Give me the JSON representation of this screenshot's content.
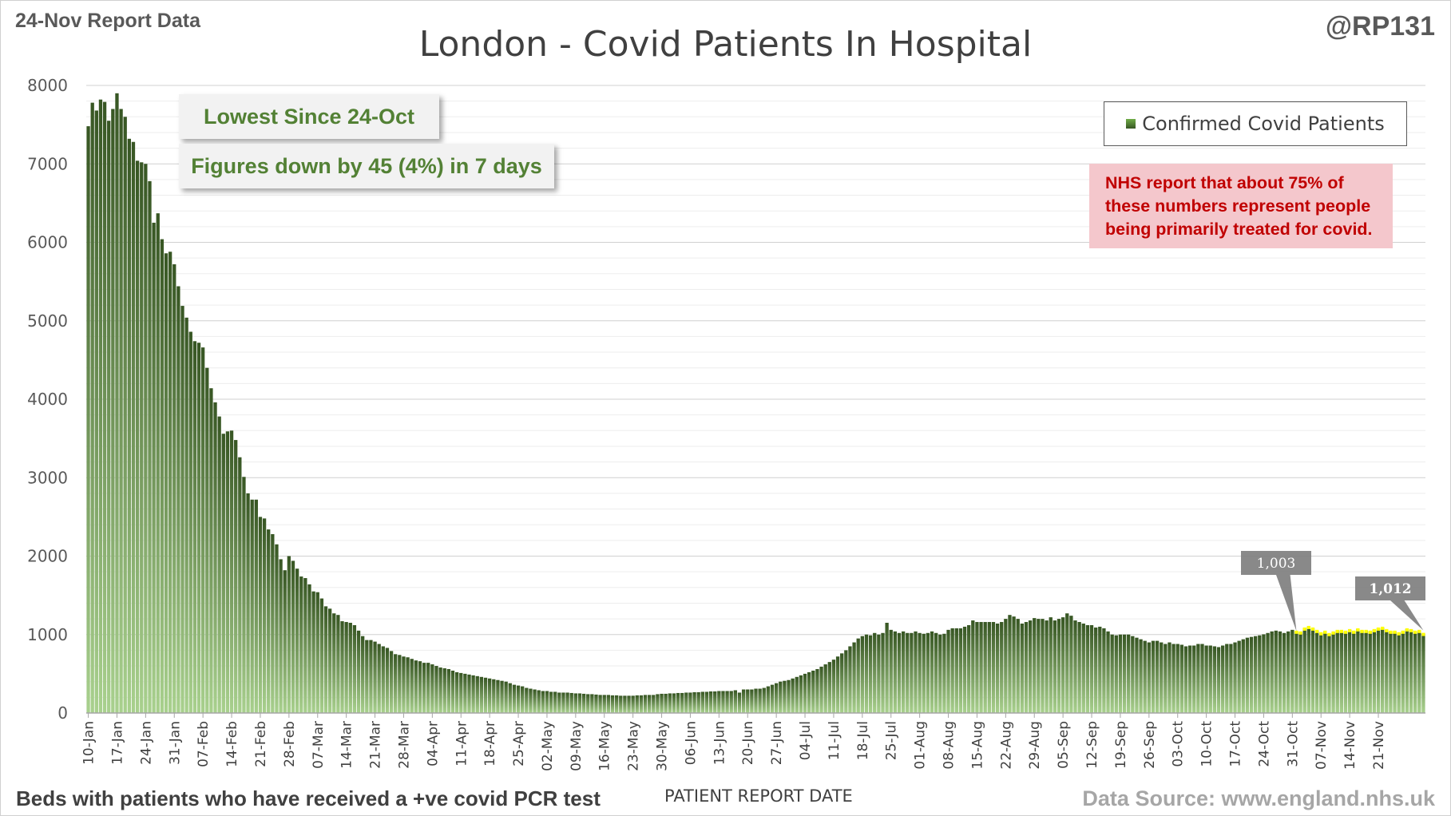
{
  "header": {
    "report_label": "24-Nov Report Data",
    "handle": "@RP131",
    "title": "London - Covid Patients In Hospital"
  },
  "callouts": {
    "lowest": "Lowest Since 24-Oct",
    "change": "Figures down by 45 (4%) in 7 days"
  },
  "legend": {
    "label": "Confirmed Covid Patients"
  },
  "note": {
    "text": "NHS report that about 75% of these numbers represent people being primarily treated for covid."
  },
  "footer": {
    "left": "Beds with patients who have received a +ve covid PCR test",
    "center": "PATIENT REPORT DATE",
    "right": "Data Source: www.england.nhs.uk"
  },
  "colors": {
    "bar_top": "#375623",
    "bar_bottom": "#a9d18e",
    "highlight": "#ffff00",
    "gridline": "#d9d9d9",
    "label_box": "#7f7f7f"
  },
  "chart_data": {
    "type": "bar",
    "title": "London - Covid Patients In Hospital",
    "xlabel": "PATIENT REPORT DATE",
    "ylabel": "",
    "ylim": [
      0,
      8000
    ],
    "yticks": [
      0,
      1000,
      2000,
      3000,
      4000,
      5000,
      6000,
      7000,
      8000
    ],
    "grid": true,
    "legend_position": "top-right",
    "x_tick_labels": [
      "10-Jan",
      "17-Jan",
      "24-Jan",
      "31-Jan",
      "07-Feb",
      "14-Feb",
      "21-Feb",
      "28-Feb",
      "07-Mar",
      "14-Mar",
      "21-Mar",
      "28-Mar",
      "04-Apr",
      "11-Apr",
      "18-Apr",
      "25-Apr",
      "02-May",
      "09-May",
      "16-May",
      "23-May",
      "30-May",
      "06-Jun",
      "13-Jun",
      "20-Jun",
      "27-Jun",
      "04-Jul",
      "11-Jul",
      "18-Jul",
      "25-Jul",
      "01-Aug",
      "08-Aug",
      "15-Aug",
      "22-Aug",
      "29-Aug",
      "05-Sep",
      "12-Sep",
      "19-Sep",
      "26-Sep",
      "03-Oct",
      "10-Oct",
      "17-Oct",
      "24-Oct",
      "31-Oct",
      "07-Nov",
      "14-Nov",
      "21-Nov"
    ],
    "series": [
      {
        "name": "Confirmed Covid Patients",
        "start_date": "10-Jan",
        "values": [
          7480,
          7780,
          7680,
          7820,
          7790,
          7550,
          7700,
          7900,
          7700,
          7600,
          7320,
          7280,
          7040,
          7020,
          7000,
          6780,
          6250,
          6370,
          6040,
          5860,
          5880,
          5720,
          5440,
          5190,
          5040,
          4860,
          4740,
          4720,
          4660,
          4400,
          4140,
          3960,
          3780,
          3560,
          3590,
          3600,
          3480,
          3260,
          3010,
          2800,
          2720,
          2720,
          2500,
          2480,
          2340,
          2280,
          2150,
          1960,
          1820,
          2000,
          1940,
          1840,
          1740,
          1720,
          1640,
          1550,
          1540,
          1460,
          1360,
          1330,
          1270,
          1250,
          1170,
          1160,
          1150,
          1120,
          1050,
          980,
          930,
          930,
          910,
          880,
          850,
          830,
          790,
          750,
          740,
          720,
          710,
          690,
          670,
          660,
          640,
          640,
          620,
          600,
          580,
          570,
          560,
          540,
          520,
          510,
          500,
          490,
          480,
          470,
          460,
          450,
          440,
          430,
          420,
          410,
          400,
          380,
          360,
          350,
          340,
          320,
          310,
          300,
          290,
          280,
          280,
          270,
          270,
          260,
          260,
          260,
          255,
          250,
          250,
          245,
          240,
          240,
          235,
          230,
          230,
          230,
          225,
          225,
          220,
          220,
          220,
          220,
          225,
          225,
          230,
          230,
          230,
          240,
          245,
          245,
          250,
          250,
          255,
          255,
          260,
          260,
          265,
          265,
          270,
          270,
          275,
          275,
          280,
          280,
          280,
          280,
          290,
          260,
          300,
          300,
          300,
          310,
          310,
          320,
          340,
          360,
          380,
          400,
          410,
          420,
          440,
          460,
          480,
          500,
          520,
          540,
          560,
          590,
          620,
          650,
          680,
          720,
          760,
          800,
          850,
          900,
          950,
          980,
          1000,
          990,
          1020,
          1000,
          1020,
          1150,
          1060,
          1040,
          1020,
          1040,
          1020,
          1020,
          1040,
          1020,
          1010,
          1020,
          1040,
          1020,
          1000,
          1010,
          1060,
          1080,
          1080,
          1080,
          1100,
          1120,
          1180,
          1160,
          1160,
          1160,
          1160,
          1160,
          1140,
          1160,
          1200,
          1250,
          1230,
          1200,
          1140,
          1160,
          1180,
          1210,
          1200,
          1200,
          1180,
          1220,
          1180,
          1200,
          1220,
          1270,
          1240,
          1180,
          1160,
          1140,
          1120,
          1120,
          1090,
          1100,
          1080,
          1040,
          1000,
          990,
          1000,
          1000,
          1000,
          980,
          960,
          940,
          920,
          900,
          920,
          920,
          900,
          880,
          900,
          880,
          880,
          870,
          850,
          860,
          860,
          880,
          880,
          860,
          860,
          850,
          840,
          860,
          880,
          880,
          900,
          920,
          940,
          960,
          970,
          980,
          990,
          1003,
          1020,
          1040,
          1050,
          1040,
          1020,
          1040,
          1060,
          1040,
          1030,
          1080,
          1100,
          1080,
          1050,
          1020,
          1040,
          1010,
          1030,
          1050,
          1050,
          1040,
          1060,
          1040,
          1070,
          1050,
          1050,
          1040,
          1060,
          1080,
          1090,
          1060,
          1040,
          1040,
          1020,
          1040,
          1070,
          1060,
          1040,
          1050,
          1012
        ]
      }
    ],
    "annotations": [
      {
        "date": "24-Oct",
        "value": 1003,
        "label": "1,003"
      },
      {
        "date": "24-Nov",
        "value": 1012,
        "label": "1,012"
      }
    ]
  }
}
